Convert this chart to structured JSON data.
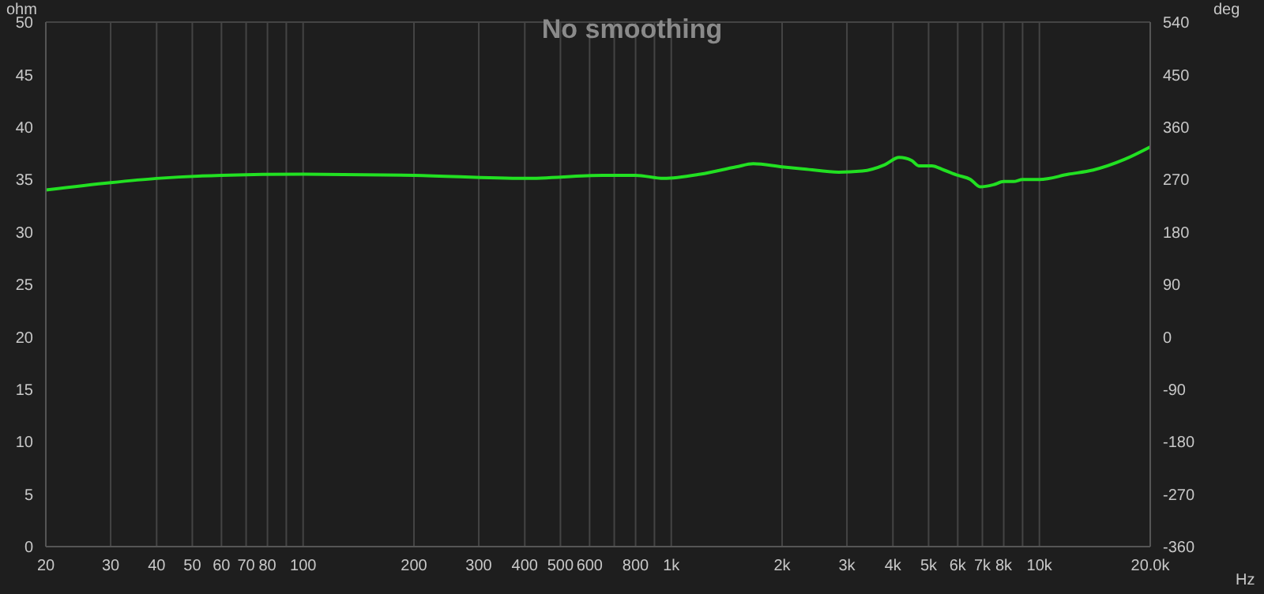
{
  "chart_data": {
    "type": "line",
    "title": "No smoothing",
    "xlabel": "Hz",
    "ylabel": "ohm",
    "y2label": "deg",
    "x": [
      20,
      30,
      40,
      60,
      100,
      200,
      400,
      653,
      800,
      953,
      1200,
      1500,
      1670,
      2000,
      2300,
      2850,
      3300,
      3800,
      4160,
      4500,
      4700,
      5100,
      5500,
      6000,
      6500,
      6900,
      7500,
      8000,
      8500,
      9000,
      10000,
      12000,
      14000,
      17000,
      20000
    ],
    "series": [
      {
        "color": "#22e022",
        "values": [
          34.0,
          34.7,
          35.1,
          35.4,
          35.5,
          35.4,
          35.1,
          35.4,
          35.4,
          35.1,
          35.5,
          36.2,
          36.5,
          36.2,
          36.0,
          35.7,
          35.8,
          36.4,
          37.1,
          36.8,
          36.3,
          36.3,
          35.9,
          35.4,
          35.0,
          34.3,
          34.5,
          34.8,
          34.8,
          35.0,
          35.0,
          35.5,
          35.9,
          36.9,
          38.1
        ]
      }
    ],
    "log": "x",
    "xlim": [
      20,
      20000
    ],
    "xticks": [
      20,
      30,
      40,
      50,
      60,
      70,
      80,
      {
        "value": 90,
        "label": null
      },
      100,
      200,
      300,
      400,
      500,
      600,
      {
        "value": 700,
        "label": null
      },
      800,
      {
        "value": 900,
        "label": null
      },
      {
        "value": 1000,
        "label": "1k"
      },
      {
        "value": 2000,
        "label": "2k"
      },
      {
        "value": 3000,
        "label": "3k"
      },
      {
        "value": 4000,
        "label": "4k"
      },
      {
        "value": 5000,
        "label": "5k"
      },
      {
        "value": 6000,
        "label": "6k"
      },
      {
        "value": 7000,
        "label": "7k"
      },
      {
        "value": 8000,
        "label": "8k"
      },
      {
        "value": 9000,
        "label": null
      },
      {
        "value": 10000,
        "label": "10k"
      },
      {
        "value": 20000,
        "label": "20.0k"
      }
    ],
    "ylim": [
      0,
      50
    ],
    "yticks": [
      0,
      5,
      10,
      15,
      20,
      25,
      30,
      35,
      40,
      45,
      50
    ],
    "y2lim": [
      -360,
      540
    ],
    "y2ticks": [
      -360,
      -270,
      -180,
      -90,
      0,
      90,
      180,
      270,
      360,
      450,
      540
    ],
    "grid": true,
    "marker": "none",
    "line_style": "solid"
  }
}
